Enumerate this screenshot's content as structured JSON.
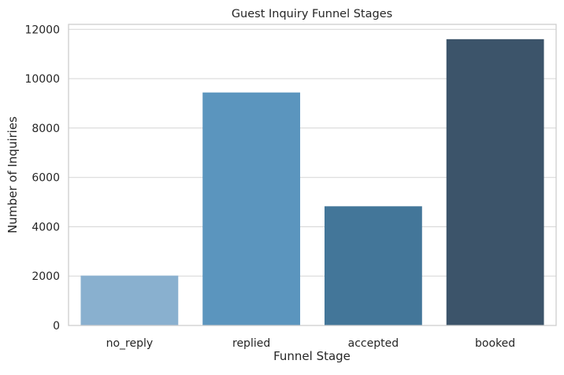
{
  "chart_data": {
    "type": "bar",
    "title": "Guest Inquiry Funnel Stages",
    "xlabel": "Funnel Stage",
    "ylabel": "Number of Inquiries",
    "categories": [
      "no_reply",
      "replied",
      "accepted",
      "booked"
    ],
    "values": [
      2020,
      9440,
      4830,
      11600
    ],
    "colors": [
      "#89b0cf",
      "#5b95be",
      "#437699",
      "#3c546a"
    ],
    "ylim": [
      0,
      12200
    ],
    "yticks": [
      0,
      2000,
      4000,
      6000,
      8000,
      10000,
      12000
    ],
    "grid": "horizontal",
    "legend": "none"
  }
}
